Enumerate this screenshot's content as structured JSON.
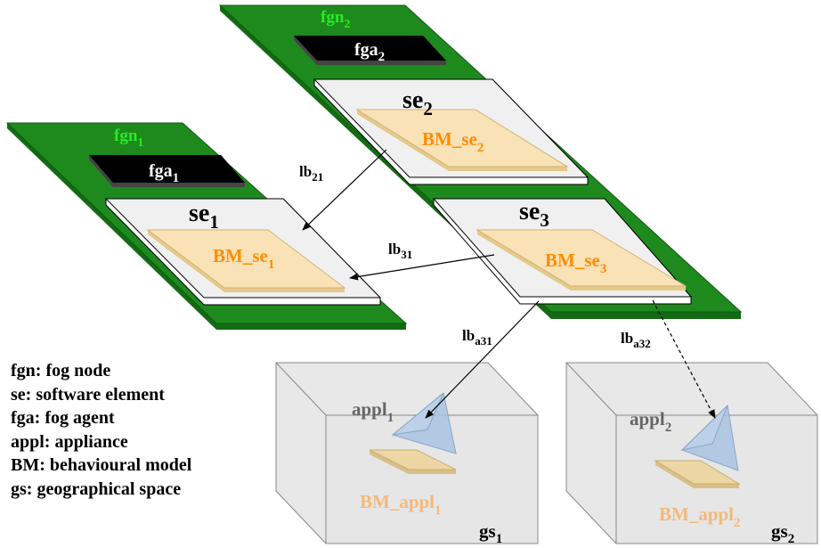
{
  "fog_nodes": [
    {
      "name": "fgn",
      "sub": "1"
    },
    {
      "name": "fgn",
      "sub": "2"
    }
  ],
  "fog_agents": [
    {
      "name": "fga",
      "sub": "1"
    },
    {
      "name": "fga",
      "sub": "2"
    }
  ],
  "software_elements": [
    {
      "name": "se",
      "sub": "1",
      "bm_name": "BM_se",
      "bm_sub": "1"
    },
    {
      "name": "se",
      "sub": "2",
      "bm_name": "BM_se",
      "bm_sub": "2"
    },
    {
      "name": "se",
      "sub": "3",
      "bm_name": "BM_se",
      "bm_sub": "3"
    }
  ],
  "links": [
    {
      "name": "lb",
      "sub": "21",
      "style": "solid"
    },
    {
      "name": "lb",
      "sub": "31",
      "style": "solid"
    },
    {
      "name": "lb",
      "sub": "a31",
      "style": "solid"
    },
    {
      "name": "lb",
      "sub": "a32",
      "style": "dashed"
    }
  ],
  "spaces": [
    {
      "name": "gs",
      "sub": "1",
      "appl_name": "appl",
      "appl_sub": "1",
      "bm_name": "BM_appl",
      "bm_sub": "1"
    },
    {
      "name": "gs",
      "sub": "2",
      "appl_name": "appl",
      "appl_sub": "2",
      "bm_name": "BM_appl",
      "bm_sub": "2"
    }
  ],
  "legend": [
    "fgn: fog node",
    "se: software element",
    "fga: fog agent",
    "appl: appliance",
    "BM: behavioural model",
    "gs: geographical space"
  ],
  "colors": {
    "fog_node": "#1e8a1e",
    "fog_node_label": "#22ee22",
    "agent": "#000000",
    "software_element": "#f0f0f0",
    "bm": "#f8e2b6",
    "bm_label": "#ff8c00",
    "bm_appl_label": "#f5b87a",
    "appliance": "#a9c2e2",
    "space": "#e8e8e8",
    "appl_label": "#666666"
  }
}
